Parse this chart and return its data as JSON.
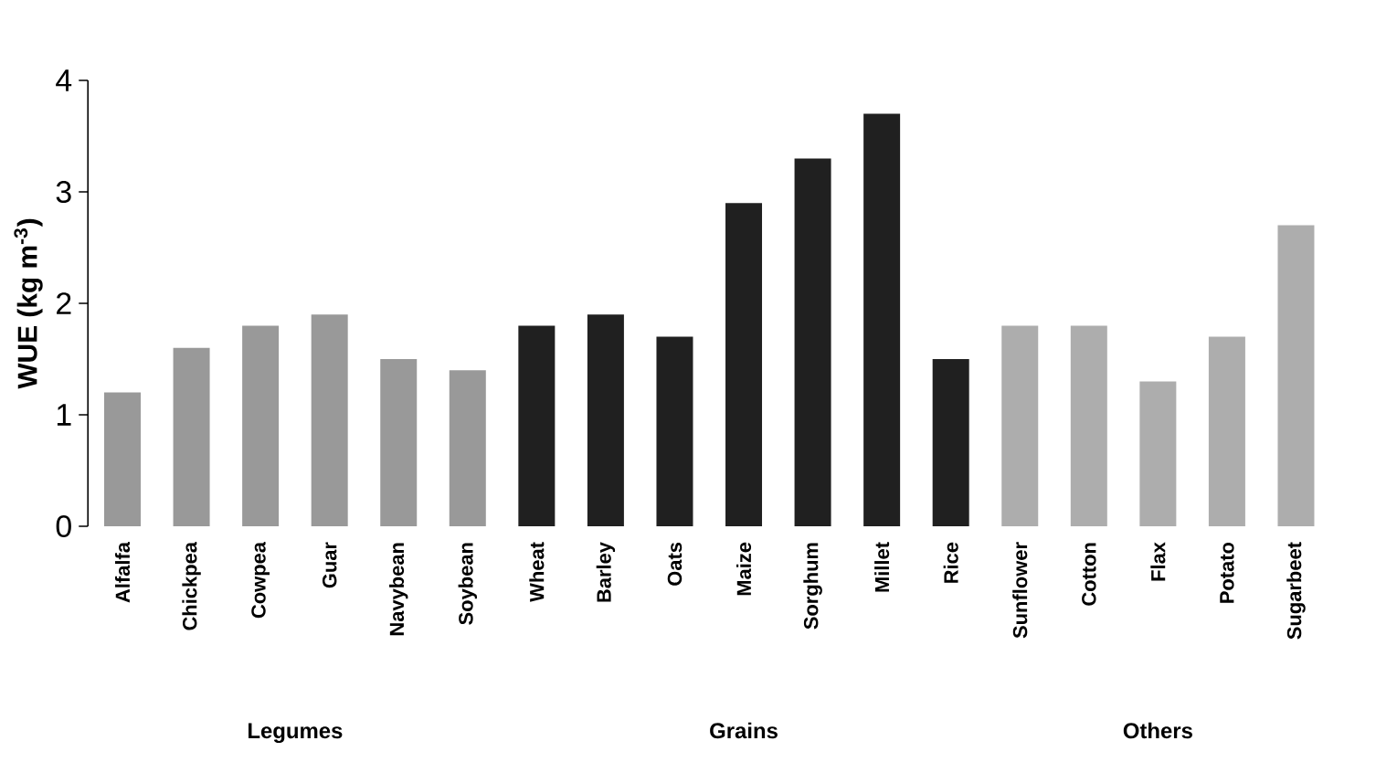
{
  "chart_data": {
    "type": "bar",
    "ylabel": "WUE (kg m$^{-3}$)",
    "categories": [
      "Alfalfa",
      "Chickpea",
      "Cowpea",
      "Guar",
      "Navybean",
      "Soybean",
      "Wheat",
      "Barley",
      "Oats",
      "Maize",
      "Sorghum",
      "Millet",
      "Rice",
      "Sunflower",
      "Cotton",
      "Flax",
      "Potato",
      "Sugarbeet"
    ],
    "values": [
      1.2,
      1.6,
      1.8,
      1.9,
      1.5,
      1.4,
      1.8,
      1.9,
      1.7,
      2.9,
      3.3,
      3.7,
      1.5,
      1.8,
      1.8,
      1.3,
      1.7,
      2.7
    ],
    "colors": [
      "#999999",
      "#999999",
      "#999999",
      "#999999",
      "#999999",
      "#999999",
      "#202020",
      "#202020",
      "#202020",
      "#202020",
      "#202020",
      "#202020",
      "#202020",
      "#adadad",
      "#adadad",
      "#adadad",
      "#adadad",
      "#adadad"
    ],
    "ylim": [
      0,
      4
    ],
    "yticks": [
      0,
      1,
      2,
      3,
      4
    ],
    "annotations": [
      "Legumes",
      "Grains",
      "Others"
    ]
  }
}
